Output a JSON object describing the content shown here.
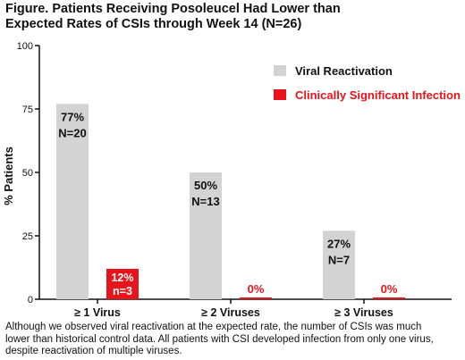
{
  "figure": {
    "title_lines": [
      "Figure. Patients Receiving Posoleucel Had Lower than",
      "Expected Rates of CSIs through Week 14 (N=26)"
    ],
    "caption_lines": [
      "Although we observed viral reactivation at the expected rate, the number of CSIs was much",
      "lower than historical control data. All patients with CSI developed infection from only one virus,",
      "despite reactivation of multiple viruses."
    ]
  },
  "colors": {
    "viral_reactivation": "#d3d3d3",
    "clinically_significant_infection": "#e8141b",
    "csi_text": "#e8141b",
    "axis": "#111111"
  },
  "chart_data": {
    "type": "bar",
    "title": "",
    "xlabel": "",
    "ylabel": "% Patients",
    "ylim": [
      0,
      100
    ],
    "yticks": [
      0,
      25,
      50,
      75,
      100
    ],
    "grid": false,
    "legend_position": "top-right",
    "categories": [
      "≥ 1 Virus",
      "≥ 2 Viruses",
      "≥ 3 Viruses"
    ],
    "series": [
      {
        "name": "Viral Reactivation",
        "values": [
          77,
          50,
          27
        ],
        "labels": [
          [
            "77%",
            "N=20"
          ],
          [
            "50%",
            "N=13"
          ],
          [
            "27%",
            "N=7"
          ]
        ]
      },
      {
        "name": "Clinically Significant Infection",
        "values": [
          12,
          0,
          0
        ],
        "labels": [
          [
            "12%",
            "n=3"
          ],
          [
            "0%"
          ],
          [
            "0%"
          ]
        ]
      }
    ]
  }
}
